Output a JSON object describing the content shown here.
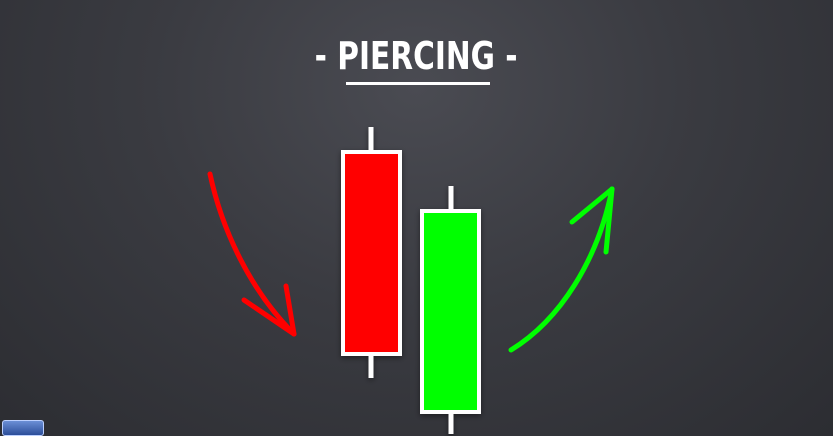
{
  "title": "- PIERCING -",
  "colors": {
    "background": "#3a3b41",
    "bearish": "#ff0000",
    "bullish": "#00ff00",
    "outline": "#ffffff"
  },
  "icons": {
    "down_arrow": "red-curved-down-arrow-icon",
    "up_arrow": "green-curved-up-arrow-icon",
    "logo": "channel-logo-icon"
  }
}
